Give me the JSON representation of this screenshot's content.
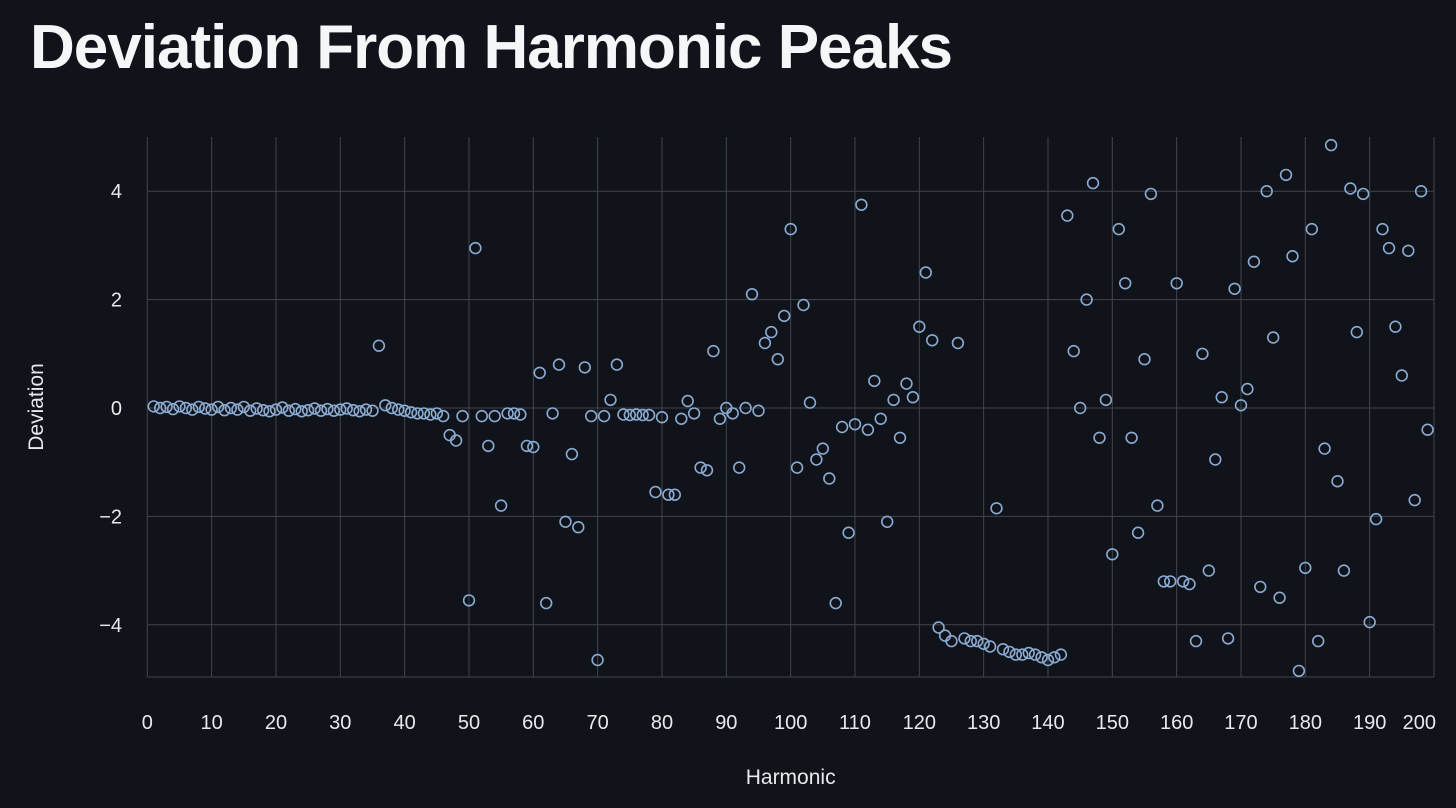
{
  "header": {
    "title": "Deviation From Harmonic Peaks"
  },
  "colors": {
    "background": "#11131a",
    "grid": "#42454e",
    "text": "#e8e9ea",
    "title": "#f5f6f8",
    "marker": "#8aabd2"
  },
  "chart_data": {
    "type": "scatter",
    "title": "Deviation From Harmonic Peaks",
    "xlabel": "Harmonic",
    "ylabel": "Deviation",
    "xlim": [
      -2,
      202
    ],
    "ylim": [
      -5,
      5
    ],
    "x_ticks": [
      0,
      10,
      20,
      30,
      40,
      50,
      60,
      70,
      80,
      90,
      100,
      110,
      120,
      130,
      140,
      150,
      160,
      170,
      180,
      190,
      200
    ],
    "y_ticks": [
      -4,
      -2,
      0,
      2,
      4
    ],
    "grid": true,
    "legend": "none",
    "marker_shape": "open-circle",
    "points": [
      [
        1,
        0.03
      ],
      [
        2,
        0.0
      ],
      [
        3,
        0.02
      ],
      [
        4,
        -0.02
      ],
      [
        5,
        0.03
      ],
      [
        6,
        0.0
      ],
      [
        7,
        -0.03
      ],
      [
        8,
        0.02
      ],
      [
        9,
        -0.01
      ],
      [
        10,
        -0.03
      ],
      [
        11,
        0.02
      ],
      [
        12,
        -0.04
      ],
      [
        13,
        0.0
      ],
      [
        14,
        -0.03
      ],
      [
        15,
        0.02
      ],
      [
        16,
        -0.05
      ],
      [
        17,
        -0.01
      ],
      [
        18,
        -0.04
      ],
      [
        19,
        -0.06
      ],
      [
        20,
        -0.03
      ],
      [
        21,
        0.01
      ],
      [
        22,
        -0.05
      ],
      [
        23,
        -0.02
      ],
      [
        24,
        -0.06
      ],
      [
        25,
        -0.04
      ],
      [
        26,
        -0.01
      ],
      [
        27,
        -0.05
      ],
      [
        28,
        -0.02
      ],
      [
        29,
        -0.05
      ],
      [
        30,
        -0.03
      ],
      [
        31,
        -0.01
      ],
      [
        32,
        -0.04
      ],
      [
        33,
        -0.06
      ],
      [
        34,
        -0.03
      ],
      [
        35,
        -0.05
      ],
      [
        36,
        1.15
      ],
      [
        37,
        0.05
      ],
      [
        38,
        0.0
      ],
      [
        39,
        -0.03
      ],
      [
        40,
        -0.05
      ],
      [
        41,
        -0.08
      ],
      [
        42,
        -0.1
      ],
      [
        43,
        -0.1
      ],
      [
        44,
        -0.12
      ],
      [
        45,
        -0.1
      ],
      [
        46,
        -0.15
      ],
      [
        47,
        -0.5
      ],
      [
        48,
        -0.6
      ],
      [
        49,
        -0.15
      ],
      [
        50,
        -3.55
      ],
      [
        51,
        2.95
      ],
      [
        52,
        -0.15
      ],
      [
        53,
        -0.7
      ],
      [
        54,
        -0.15
      ],
      [
        55,
        -1.8
      ],
      [
        56,
        -0.1
      ],
      [
        57,
        -0.1
      ],
      [
        58,
        -0.12
      ],
      [
        59,
        -0.7
      ],
      [
        60,
        -0.72
      ],
      [
        61,
        0.65
      ],
      [
        62,
        -3.6
      ],
      [
        63,
        -0.1
      ],
      [
        64,
        0.8
      ],
      [
        65,
        -2.1
      ],
      [
        66,
        -0.85
      ],
      [
        67,
        -2.2
      ],
      [
        68,
        0.75
      ],
      [
        69,
        -0.15
      ],
      [
        70,
        -4.65
      ],
      [
        71,
        -0.15
      ],
      [
        72,
        0.15
      ],
      [
        73,
        0.8
      ],
      [
        74,
        -0.12
      ],
      [
        75,
        -0.13
      ],
      [
        76,
        -0.12
      ],
      [
        77,
        -0.13
      ],
      [
        78,
        -0.13
      ],
      [
        79,
        -1.55
      ],
      [
        80,
        -0.17
      ],
      [
        81,
        -1.6
      ],
      [
        82,
        -1.6
      ],
      [
        83,
        -0.2
      ],
      [
        84,
        0.13
      ],
      [
        85,
        -0.1
      ],
      [
        86,
        -1.1
      ],
      [
        87,
        -1.15
      ],
      [
        88,
        1.05
      ],
      [
        89,
        -0.2
      ],
      [
        90,
        0.0
      ],
      [
        91,
        -0.1
      ],
      [
        92,
        -1.1
      ],
      [
        93,
        0.0
      ],
      [
        94,
        2.1
      ],
      [
        95,
        -0.05
      ],
      [
        96,
        1.2
      ],
      [
        97,
        1.4
      ],
      [
        98,
        0.9
      ],
      [
        99,
        1.7
      ],
      [
        100,
        3.3
      ],
      [
        101,
        -1.1
      ],
      [
        102,
        1.9
      ],
      [
        103,
        0.1
      ],
      [
        104,
        -0.95
      ],
      [
        105,
        -0.75
      ],
      [
        106,
        -1.3
      ],
      [
        107,
        -3.6
      ],
      [
        108,
        -0.35
      ],
      [
        109,
        -2.3
      ],
      [
        110,
        -0.3
      ],
      [
        111,
        3.75
      ],
      [
        112,
        -0.4
      ],
      [
        113,
        0.5
      ],
      [
        114,
        -0.2
      ],
      [
        115,
        -2.1
      ],
      [
        116,
        0.15
      ],
      [
        117,
        -0.55
      ],
      [
        118,
        0.45
      ],
      [
        119,
        0.2
      ],
      [
        120,
        1.5
      ],
      [
        121,
        2.5
      ],
      [
        122,
        1.25
      ],
      [
        123,
        -4.05
      ],
      [
        124,
        -4.2
      ],
      [
        125,
        -4.3
      ],
      [
        126,
        1.2
      ],
      [
        127,
        -4.25
      ],
      [
        128,
        -4.3
      ],
      [
        129,
        -4.3
      ],
      [
        130,
        -4.35
      ],
      [
        131,
        -4.4
      ],
      [
        132,
        -1.85
      ],
      [
        133,
        -4.45
      ],
      [
        134,
        -4.5
      ],
      [
        135,
        -4.55
      ],
      [
        136,
        -4.55
      ],
      [
        137,
        -4.52
      ],
      [
        138,
        -4.55
      ],
      [
        139,
        -4.6
      ],
      [
        140,
        -4.65
      ],
      [
        141,
        -4.6
      ],
      [
        142,
        -4.55
      ],
      [
        143,
        3.55
      ],
      [
        144,
        1.05
      ],
      [
        145,
        0.0
      ],
      [
        146,
        2.0
      ],
      [
        147,
        4.15
      ],
      [
        148,
        -0.55
      ],
      [
        149,
        0.15
      ],
      [
        150,
        -2.7
      ],
      [
        151,
        3.3
      ],
      [
        152,
        2.3
      ],
      [
        153,
        -0.55
      ],
      [
        154,
        -2.3
      ],
      [
        155,
        0.9
      ],
      [
        156,
        3.95
      ],
      [
        157,
        -1.8
      ],
      [
        158,
        -3.2
      ],
      [
        159,
        -3.2
      ],
      [
        160,
        2.3
      ],
      [
        161,
        -3.2
      ],
      [
        162,
        -3.25
      ],
      [
        163,
        -4.3
      ],
      [
        164,
        1.0
      ],
      [
        165,
        -3.0
      ],
      [
        166,
        -0.95
      ],
      [
        167,
        0.2
      ],
      [
        168,
        -4.25
      ],
      [
        169,
        2.2
      ],
      [
        170,
        0.05
      ],
      [
        171,
        0.35
      ],
      [
        172,
        2.7
      ],
      [
        173,
        -3.3
      ],
      [
        174,
        4.0
      ],
      [
        175,
        1.3
      ],
      [
        176,
        -3.5
      ],
      [
        177,
        4.3
      ],
      [
        178,
        2.8
      ],
      [
        179,
        -4.85
      ],
      [
        180,
        -2.95
      ],
      [
        181,
        3.3
      ],
      [
        182,
        -4.3
      ],
      [
        183,
        -0.75
      ],
      [
        184,
        4.85
      ],
      [
        185,
        -1.35
      ],
      [
        186,
        -3.0
      ],
      [
        187,
        4.05
      ],
      [
        188,
        1.4
      ],
      [
        189,
        3.95
      ],
      [
        190,
        -3.95
      ],
      [
        191,
        -2.05
      ],
      [
        192,
        3.3
      ],
      [
        193,
        2.95
      ],
      [
        194,
        1.5
      ],
      [
        195,
        0.6
      ],
      [
        196,
        2.9
      ],
      [
        197,
        -1.7
      ],
      [
        198,
        4.0
      ],
      [
        199,
        -0.4
      ]
    ]
  }
}
